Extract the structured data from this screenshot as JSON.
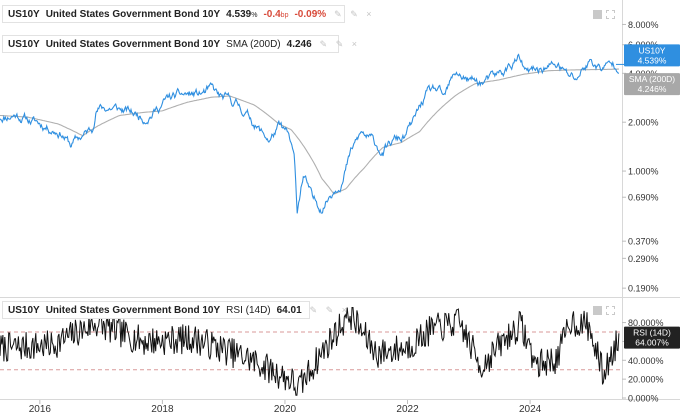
{
  "legend_top": {
    "symbol": "US10Y",
    "name": "United States Government Bond 10Y",
    "value": "4.539",
    "value_unit": "%",
    "change_bp": "-0.4",
    "change_bp_unit": "bp",
    "change_pct": "-0.09",
    "change_pct_unit": "%",
    "tools": "✎ ✎ ×",
    "color": "#2f8fe0"
  },
  "legend_sma": {
    "symbol": "US10Y",
    "name": "United States Government Bond 10Y",
    "indicator": "SMA (200D)",
    "value": "4.246",
    "tools": "✎ ✎ ×",
    "color": "#b0b0b0"
  },
  "legend_rsi": {
    "symbol": "US10Y",
    "name": "United States Government Bond 10Y",
    "indicator": "RSI (14D)",
    "value": "64.01",
    "tools": "✎ ✎ ×",
    "color": "#222222"
  },
  "chart_data": [
    {
      "type": "line",
      "title": "US10Y United States Government Bond 10Y",
      "yscale": "log",
      "ylim": [
        0.17,
        11.0
      ],
      "y_ticks": [
        "8.000%",
        "6.000%",
        "4.000%",
        "2.000%",
        "1.000%",
        "0.690%",
        "0.370%",
        "0.290%",
        "0.190%"
      ],
      "y_tick_values": [
        8.0,
        6.0,
        4.0,
        2.0,
        1.0,
        0.69,
        0.37,
        0.29,
        0.19
      ],
      "x_ticks": [
        "2016",
        "2018",
        "2020",
        "2022",
        "2024"
      ],
      "x_tick_values": [
        2016,
        2018,
        2020,
        2022,
        2024
      ],
      "xlim": [
        2015.35,
        2025.5
      ],
      "series": [
        {
          "name": "US10Y",
          "color": "#2f8fe0",
          "points": [
            [
              2015.35,
              2.15
            ],
            [
              2015.6,
              2.25
            ],
            [
              2015.85,
              2.05
            ],
            [
              2016.1,
              1.9
            ],
            [
              2016.35,
              1.75
            ],
            [
              2016.5,
              1.45
            ],
            [
              2016.65,
              1.6
            ],
            [
              2016.85,
              1.8
            ],
            [
              2016.92,
              2.45
            ],
            [
              2017.2,
              2.45
            ],
            [
              2017.45,
              2.3
            ],
            [
              2017.7,
              2.15
            ],
            [
              2017.9,
              2.4
            ],
            [
              2018.1,
              2.8
            ],
            [
              2018.4,
              2.95
            ],
            [
              2018.6,
              2.95
            ],
            [
              2018.8,
              3.15
            ],
            [
              2018.95,
              2.8
            ],
            [
              2019.2,
              2.6
            ],
            [
              2019.45,
              2.1
            ],
            [
              2019.6,
              1.75
            ],
            [
              2019.75,
              1.55
            ],
            [
              2019.9,
              1.85
            ],
            [
              2020.05,
              1.65
            ],
            [
              2020.15,
              1.15
            ],
            [
              2020.2,
              0.55
            ],
            [
              2020.3,
              0.95
            ],
            [
              2020.45,
              0.65
            ],
            [
              2020.6,
              0.6
            ],
            [
              2020.8,
              0.78
            ],
            [
              2020.95,
              0.92
            ],
            [
              2021.1,
              1.35
            ],
            [
              2021.25,
              1.7
            ],
            [
              2021.4,
              1.55
            ],
            [
              2021.6,
              1.3
            ],
            [
              2021.8,
              1.55
            ],
            [
              2021.95,
              1.6
            ],
            [
              2022.1,
              2.0
            ],
            [
              2022.3,
              2.9
            ],
            [
              2022.45,
              3.15
            ],
            [
              2022.6,
              2.75
            ],
            [
              2022.8,
              4.05
            ],
            [
              2023.0,
              3.6
            ],
            [
              2023.2,
              3.5
            ],
            [
              2023.4,
              3.7
            ],
            [
              2023.6,
              4.15
            ],
            [
              2023.8,
              4.95
            ],
            [
              2023.95,
              3.9
            ],
            [
              2024.2,
              4.3
            ],
            [
              2024.45,
              4.5
            ],
            [
              2024.6,
              3.9
            ],
            [
              2024.75,
              3.7
            ],
            [
              2024.9,
              4.45
            ],
            [
              2025.0,
              4.75
            ],
            [
              2025.15,
              4.3
            ],
            [
              2025.3,
              4.45
            ],
            [
              2025.45,
              4.54
            ]
          ]
        },
        {
          "name": "SMA (200D)",
          "color": "#b0b0b0",
          "points": [
            [
              2015.35,
              2.2
            ],
            [
              2015.8,
              2.15
            ],
            [
              2016.3,
              1.95
            ],
            [
              2016.7,
              1.65
            ],
            [
              2016.95,
              1.9
            ],
            [
              2017.3,
              2.2
            ],
            [
              2017.7,
              2.3
            ],
            [
              2018.0,
              2.35
            ],
            [
              2018.4,
              2.65
            ],
            [
              2018.8,
              2.85
            ],
            [
              2019.1,
              2.9
            ],
            [
              2019.5,
              2.55
            ],
            [
              2019.9,
              1.95
            ],
            [
              2020.1,
              1.8
            ],
            [
              2020.4,
              1.25
            ],
            [
              2020.6,
              0.9
            ],
            [
              2020.8,
              0.72
            ],
            [
              2021.0,
              0.78
            ],
            [
              2021.3,
              1.05
            ],
            [
              2021.6,
              1.4
            ],
            [
              2021.9,
              1.5
            ],
            [
              2022.2,
              1.75
            ],
            [
              2022.5,
              2.35
            ],
            [
              2022.8,
              2.95
            ],
            [
              2023.1,
              3.45
            ],
            [
              2023.5,
              3.65
            ],
            [
              2023.9,
              3.95
            ],
            [
              2024.3,
              4.15
            ],
            [
              2024.7,
              4.2
            ],
            [
              2025.1,
              4.22
            ],
            [
              2025.45,
              4.246
            ]
          ]
        }
      ],
      "price_labels": [
        {
          "name": "US10Y",
          "value": "4.539%",
          "value_num": 4.539,
          "color": "#2f8fe0"
        },
        {
          "name": "SMA (200D)",
          "value": "4.246%",
          "value_num": 4.246,
          "color": "#a8a8a8"
        }
      ]
    },
    {
      "type": "line",
      "title": "US10Y United States Government Bond 10Y RSI (14D)",
      "ylim": [
        0,
        105
      ],
      "y_ticks": [
        "80.000%",
        "60.000%",
        "40.000%",
        "20.000%",
        "0.000%"
      ],
      "y_tick_values": [
        80,
        60,
        40,
        20,
        0
      ],
      "reference_lines": [
        70,
        30
      ],
      "reference_color": "#d99a9a",
      "series": [
        {
          "name": "RSI (14D)",
          "color": "#111111",
          "baseline": 50,
          "spread": 10,
          "seed": 7,
          "samples": 640,
          "key_points": [
            [
              2015.35,
              53
            ],
            [
              2016.2,
              56
            ],
            [
              2016.9,
              79
            ],
            [
              2017.7,
              60
            ],
            [
              2018.5,
              63
            ],
            [
              2019.4,
              42
            ],
            [
              2020.12,
              18
            ],
            [
              2020.2,
              8
            ],
            [
              2020.6,
              48
            ],
            [
              2021.05,
              90
            ],
            [
              2021.5,
              47
            ],
            [
              2022.0,
              54
            ],
            [
              2022.4,
              73
            ],
            [
              2022.85,
              80
            ],
            [
              2023.2,
              33
            ],
            [
              2023.6,
              63
            ],
            [
              2023.85,
              78
            ],
            [
              2024.1,
              35
            ],
            [
              2024.45,
              42
            ],
            [
              2024.65,
              82
            ],
            [
              2024.95,
              76
            ],
            [
              2025.2,
              25
            ],
            [
              2025.45,
              64
            ]
          ]
        }
      ],
      "price_labels": [
        {
          "name": "RSI (14D)",
          "value": "64.007%",
          "value_num": 64.007,
          "color": "#222222"
        }
      ]
    }
  ]
}
